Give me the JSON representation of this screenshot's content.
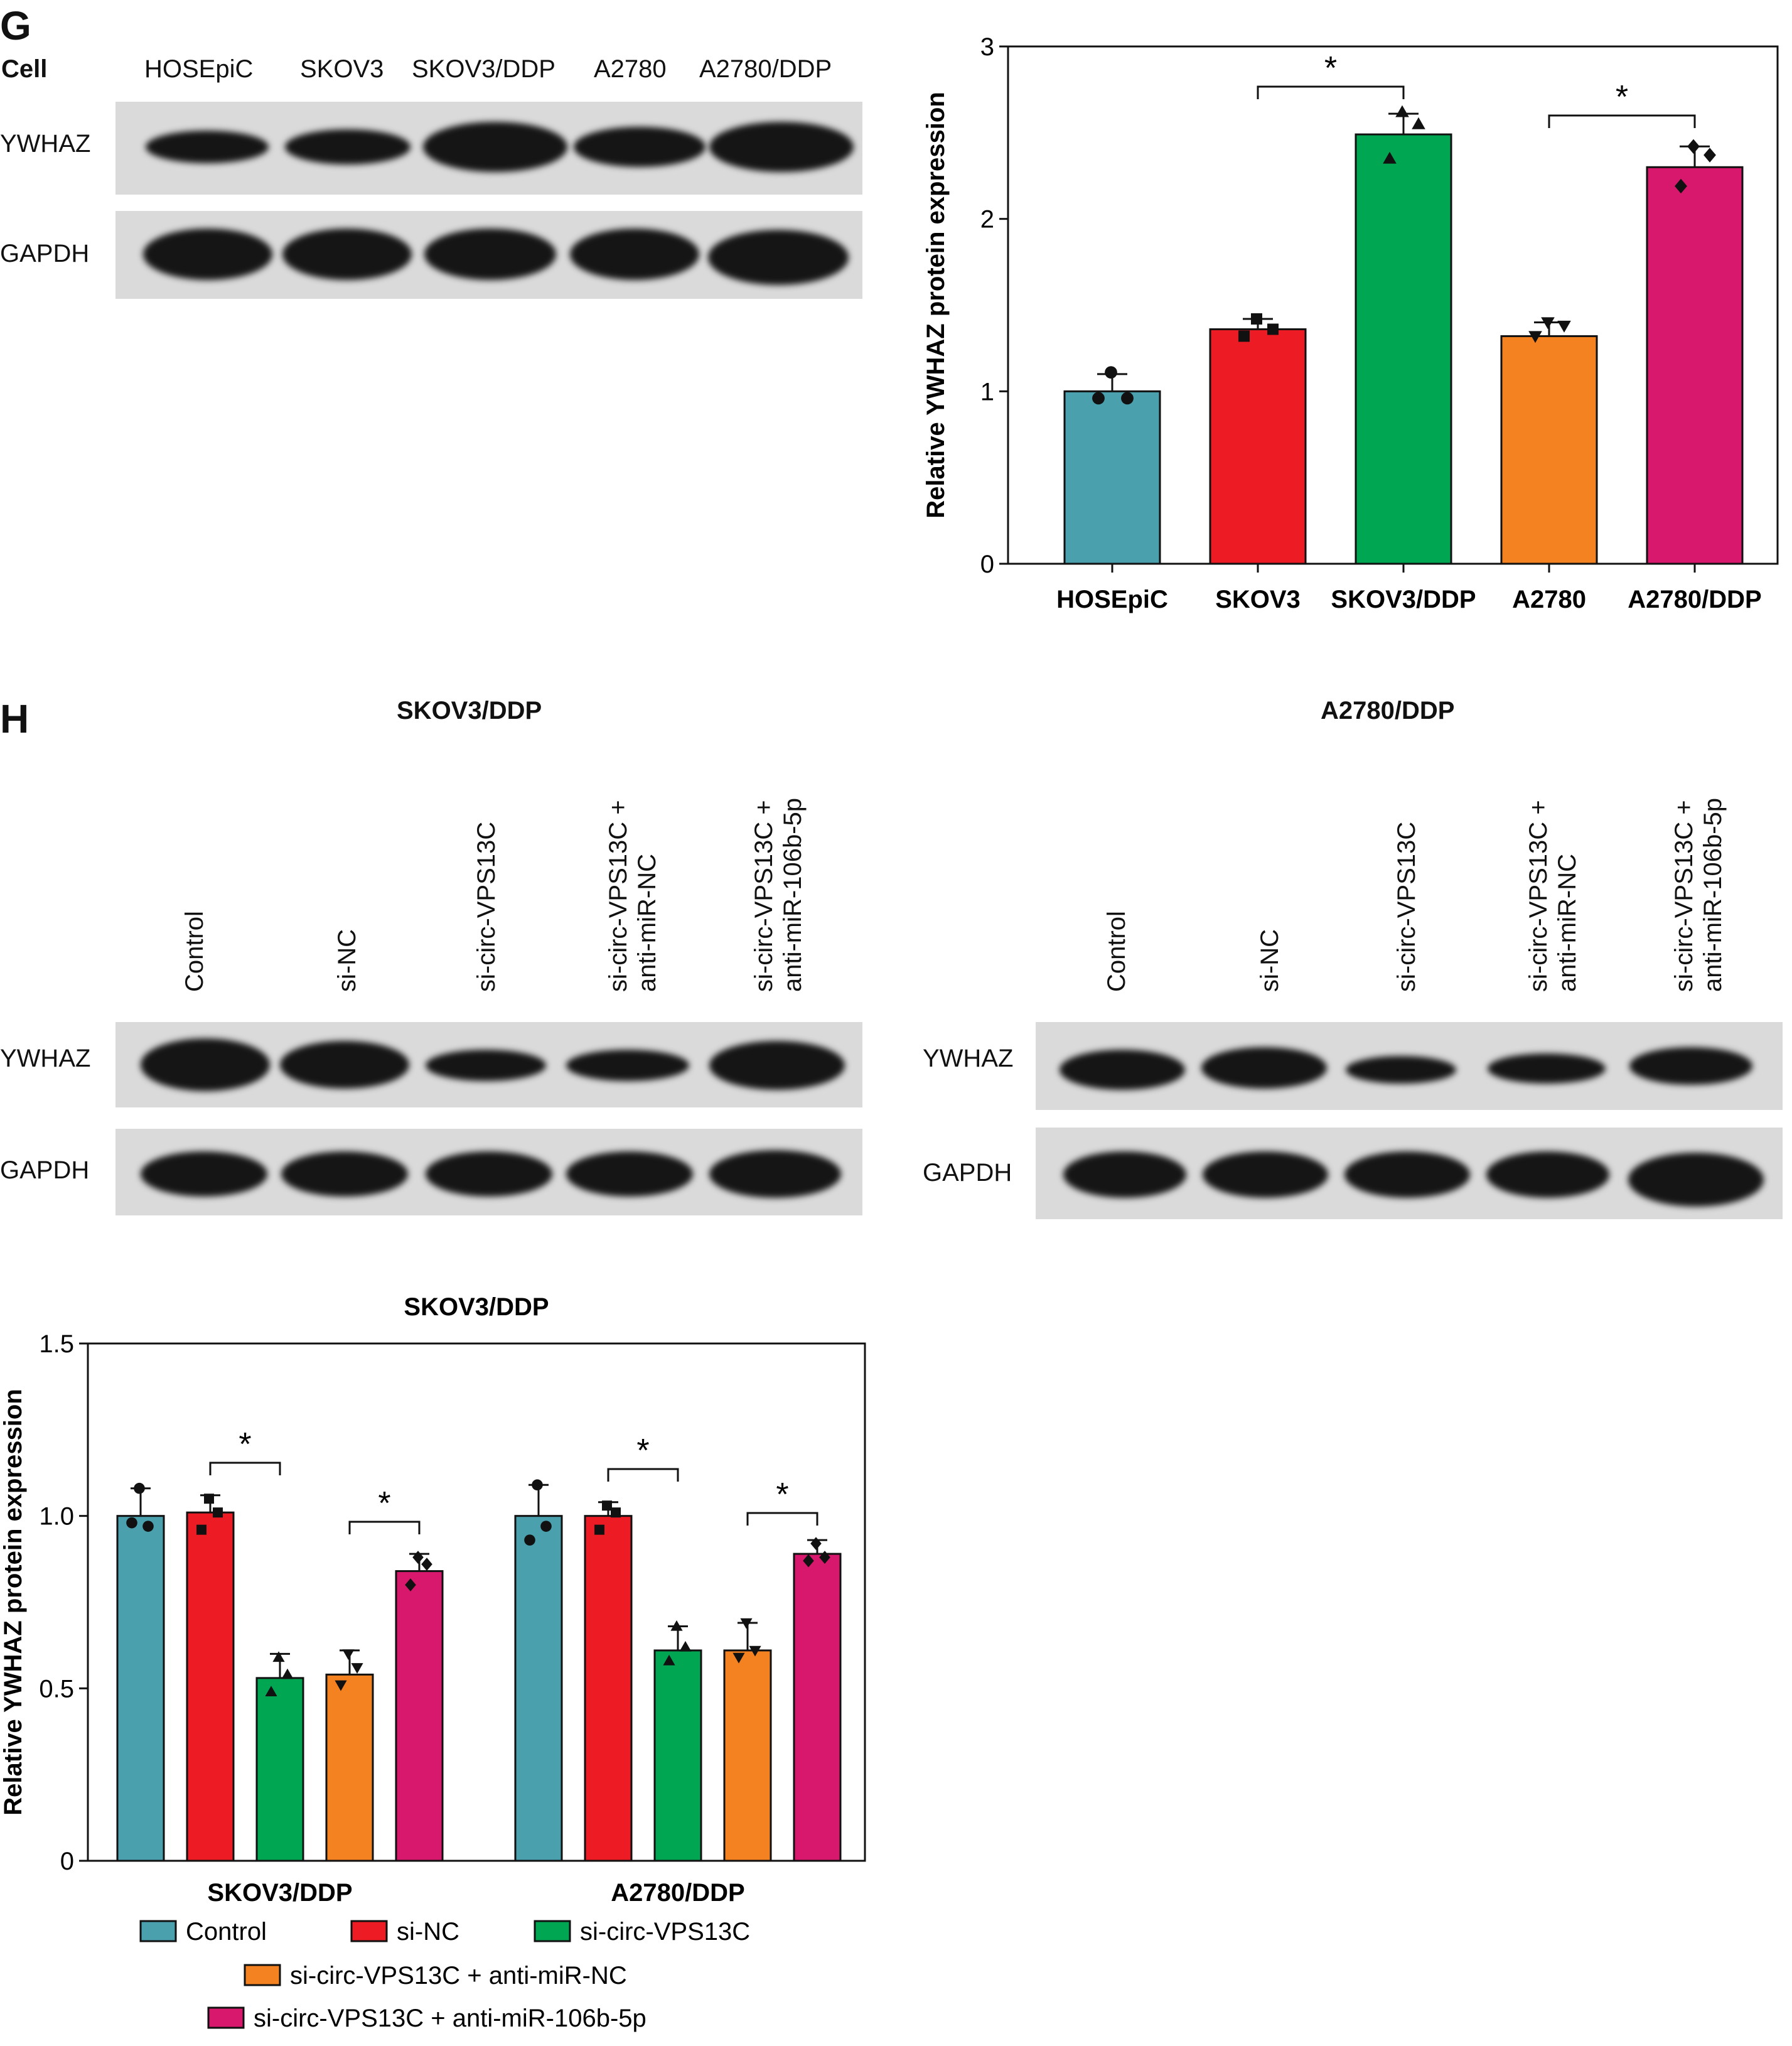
{
  "panel_g": {
    "letter": "G",
    "cell_header": "Cell",
    "lane_labels": [
      "HOSEpiC",
      "SKOV3",
      "SKOV3/DDP",
      "A2780",
      "A2780/DDP"
    ],
    "row_labels": [
      "YWHAZ",
      "GAPDH"
    ]
  },
  "panel_h": {
    "letter": "H",
    "blots": [
      {
        "title": "SKOV3/DDP",
        "lanes": [
          [
            "Control"
          ],
          [
            "si-NC"
          ],
          [
            "si-circ-VPS13C"
          ],
          [
            "si-circ-VPS13C +",
            "anti-miR-NC"
          ],
          [
            "si-circ-VPS13C +",
            "anti-miR-106b-5p"
          ]
        ],
        "row_labels": [
          "YWHAZ",
          "GAPDH"
        ]
      },
      {
        "title": "A2780/DDP",
        "lanes": [
          [
            "Control"
          ],
          [
            "si-NC"
          ],
          [
            "si-circ-VPS13C"
          ],
          [
            "si-circ-VPS13C +",
            "anti-miR-NC"
          ],
          [
            "si-circ-VPS13C +",
            "anti-miR-106b-5p"
          ]
        ],
        "row_labels": [
          "YWHAZ",
          "GAPDH"
        ]
      }
    ]
  },
  "colors": {
    "teal": "#4aa0ad",
    "red": "#ed1c24",
    "green": "#00a651",
    "orange": "#f58220",
    "magenta": "#d7186c"
  },
  "chart_data": [
    {
      "type": "bar",
      "title": "",
      "ylabel": "Relative YWHAZ protein expression",
      "xlabel": "",
      "categories": [
        "HOSEpiC",
        "SKOV3",
        "SKOV3/DDP",
        "A2780",
        "A2780/DDP"
      ],
      "values": [
        1.0,
        1.36,
        2.49,
        1.32,
        2.3
      ],
      "errors": [
        0.1,
        0.06,
        0.12,
        0.08,
        0.12
      ],
      "points": [
        [
          1.11,
          0.96,
          0.96
        ],
        [
          1.42,
          1.36,
          1.32
        ],
        [
          2.62,
          2.55,
          2.35
        ],
        [
          1.4,
          1.38,
          1.32
        ],
        [
          2.42,
          2.37,
          2.19
        ]
      ],
      "markers": [
        "circle",
        "square",
        "triangle",
        "triangle-down",
        "diamond"
      ],
      "colors": [
        "#4aa0ad",
        "#ed1c24",
        "#00a651",
        "#f58220",
        "#d7186c"
      ],
      "ylim": [
        0,
        3
      ],
      "yticks": [
        "0",
        "1",
        "2",
        "3"
      ],
      "significance": [
        {
          "from": "SKOV3",
          "to": "SKOV3/DDP",
          "label": "*"
        },
        {
          "from": "A2780",
          "to": "A2780/DDP",
          "label": "*"
        }
      ]
    },
    {
      "type": "bar",
      "title": "SKOV3/DDP",
      "ylabel": "Relative YWHAZ protein expression",
      "xlabel": "",
      "categories": [
        "SKOV3/DDP",
        "A2780/DDP"
      ],
      "series": [
        {
          "name": "Control",
          "values": [
            1.0,
            1.0
          ],
          "errors": [
            0.08,
            0.09
          ],
          "points": [
            [
              1.08,
              0.97,
              0.98
            ],
            [
              1.09,
              0.97,
              0.93
            ]
          ],
          "marker": "circle",
          "color": "#4aa0ad"
        },
        {
          "name": "si-NC",
          "values": [
            1.01,
            1.0
          ],
          "errors": [
            0.05,
            0.04
          ],
          "points": [
            [
              1.05,
              1.01,
              0.96
            ],
            [
              1.03,
              1.01,
              0.96
            ]
          ],
          "marker": "square",
          "color": "#ed1c24"
        },
        {
          "name": "si-circ-VPS13C",
          "values": [
            0.53,
            0.61
          ],
          "errors": [
            0.07,
            0.07
          ],
          "points": [
            [
              0.59,
              0.54,
              0.49
            ],
            [
              0.68,
              0.62,
              0.58
            ]
          ],
          "marker": "triangle",
          "color": "#00a651"
        },
        {
          "name": "si-circ-VPS13C + anti-miR-NC",
          "values": [
            0.54,
            0.61
          ],
          "errors": [
            0.07,
            0.08
          ],
          "points": [
            [
              0.6,
              0.56,
              0.51
            ],
            [
              0.69,
              0.61,
              0.59
            ]
          ],
          "marker": "triangle-down",
          "color": "#f58220"
        },
        {
          "name": "si-circ-VPS13C + anti-miR-106b-5p",
          "values": [
            0.84,
            0.89
          ],
          "errors": [
            0.05,
            0.04
          ],
          "points": [
            [
              0.88,
              0.86,
              0.8
            ],
            [
              0.92,
              0.88,
              0.87
            ]
          ],
          "marker": "diamond",
          "color": "#d7186c"
        }
      ],
      "ylim": [
        0,
        1.5
      ],
      "yticks": [
        "0",
        "0.5",
        "1.0",
        "1.5"
      ],
      "significance": [
        {
          "group": "SKOV3/DDP",
          "from": "si-NC",
          "to": "si-circ-VPS13C",
          "label": "*"
        },
        {
          "group": "SKOV3/DDP",
          "from": "si-circ-VPS13C + anti-miR-NC",
          "to": "si-circ-VPS13C + anti-miR-106b-5p",
          "label": "*"
        },
        {
          "group": "A2780/DDP",
          "from": "si-NC",
          "to": "si-circ-VPS13C",
          "label": "*"
        },
        {
          "group": "A2780/DDP",
          "from": "si-circ-VPS13C + anti-miR-NC",
          "to": "si-circ-VPS13C + anti-miR-106b-5p",
          "label": "*"
        }
      ],
      "legend": [
        "Control",
        "si-NC",
        "si-circ-VPS13C",
        "si-circ-VPS13C + anti-miR-NC",
        "si-circ-VPS13C + anti-miR-106b-5p"
      ],
      "legend_position": "bottom"
    }
  ]
}
